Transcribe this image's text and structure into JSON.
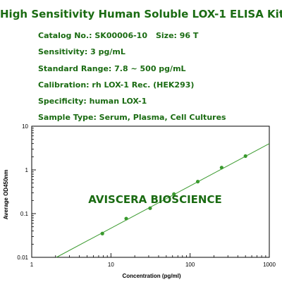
{
  "title": "High Sensitivity Human Soluble LOX-1 ELISA Kit",
  "specs": {
    "catalog": "Catalog No.: SK00006-10",
    "size": "Size: 96 T",
    "sensitivity": "Sensitivity: 3 pg/mL",
    "standard_range": "Standard Range: 7.8 ~ 500 pg/mL",
    "calibration": "Calibration: rh LOX-1 Rec. (HEK293)",
    "specificity": "Specificity: human LOX-1",
    "sample_type": "Sample Type: Serum, Plasma, Cell Cultures"
  },
  "colors": {
    "brand": "#1a6b12",
    "series": "#3a9a2e"
  },
  "chart_data": {
    "type": "scatter",
    "xlabel": "Concentration (pg/ml)",
    "ylabel": "Average OD450nm",
    "x_scale": "log",
    "y_scale": "log",
    "xlim": [
      1,
      1000
    ],
    "ylim": [
      0.01,
      10
    ],
    "x_ticks": [
      "1",
      "10",
      "100",
      "1000"
    ],
    "y_ticks": [
      "0.01",
      "0.1",
      "1",
      "10"
    ],
    "grid": false,
    "watermark": "AVISCERA BIOSCIENCE",
    "points": {
      "x": [
        7.8,
        15.6,
        31.25,
        62.5,
        125,
        250,
        500
      ],
      "y": [
        0.035,
        0.077,
        0.133,
        0.28,
        0.54,
        1.13,
        2.07
      ]
    },
    "fit": {
      "x": [
        2.05,
        1000
      ],
      "y": [
        0.01,
        4.0
      ]
    }
  }
}
